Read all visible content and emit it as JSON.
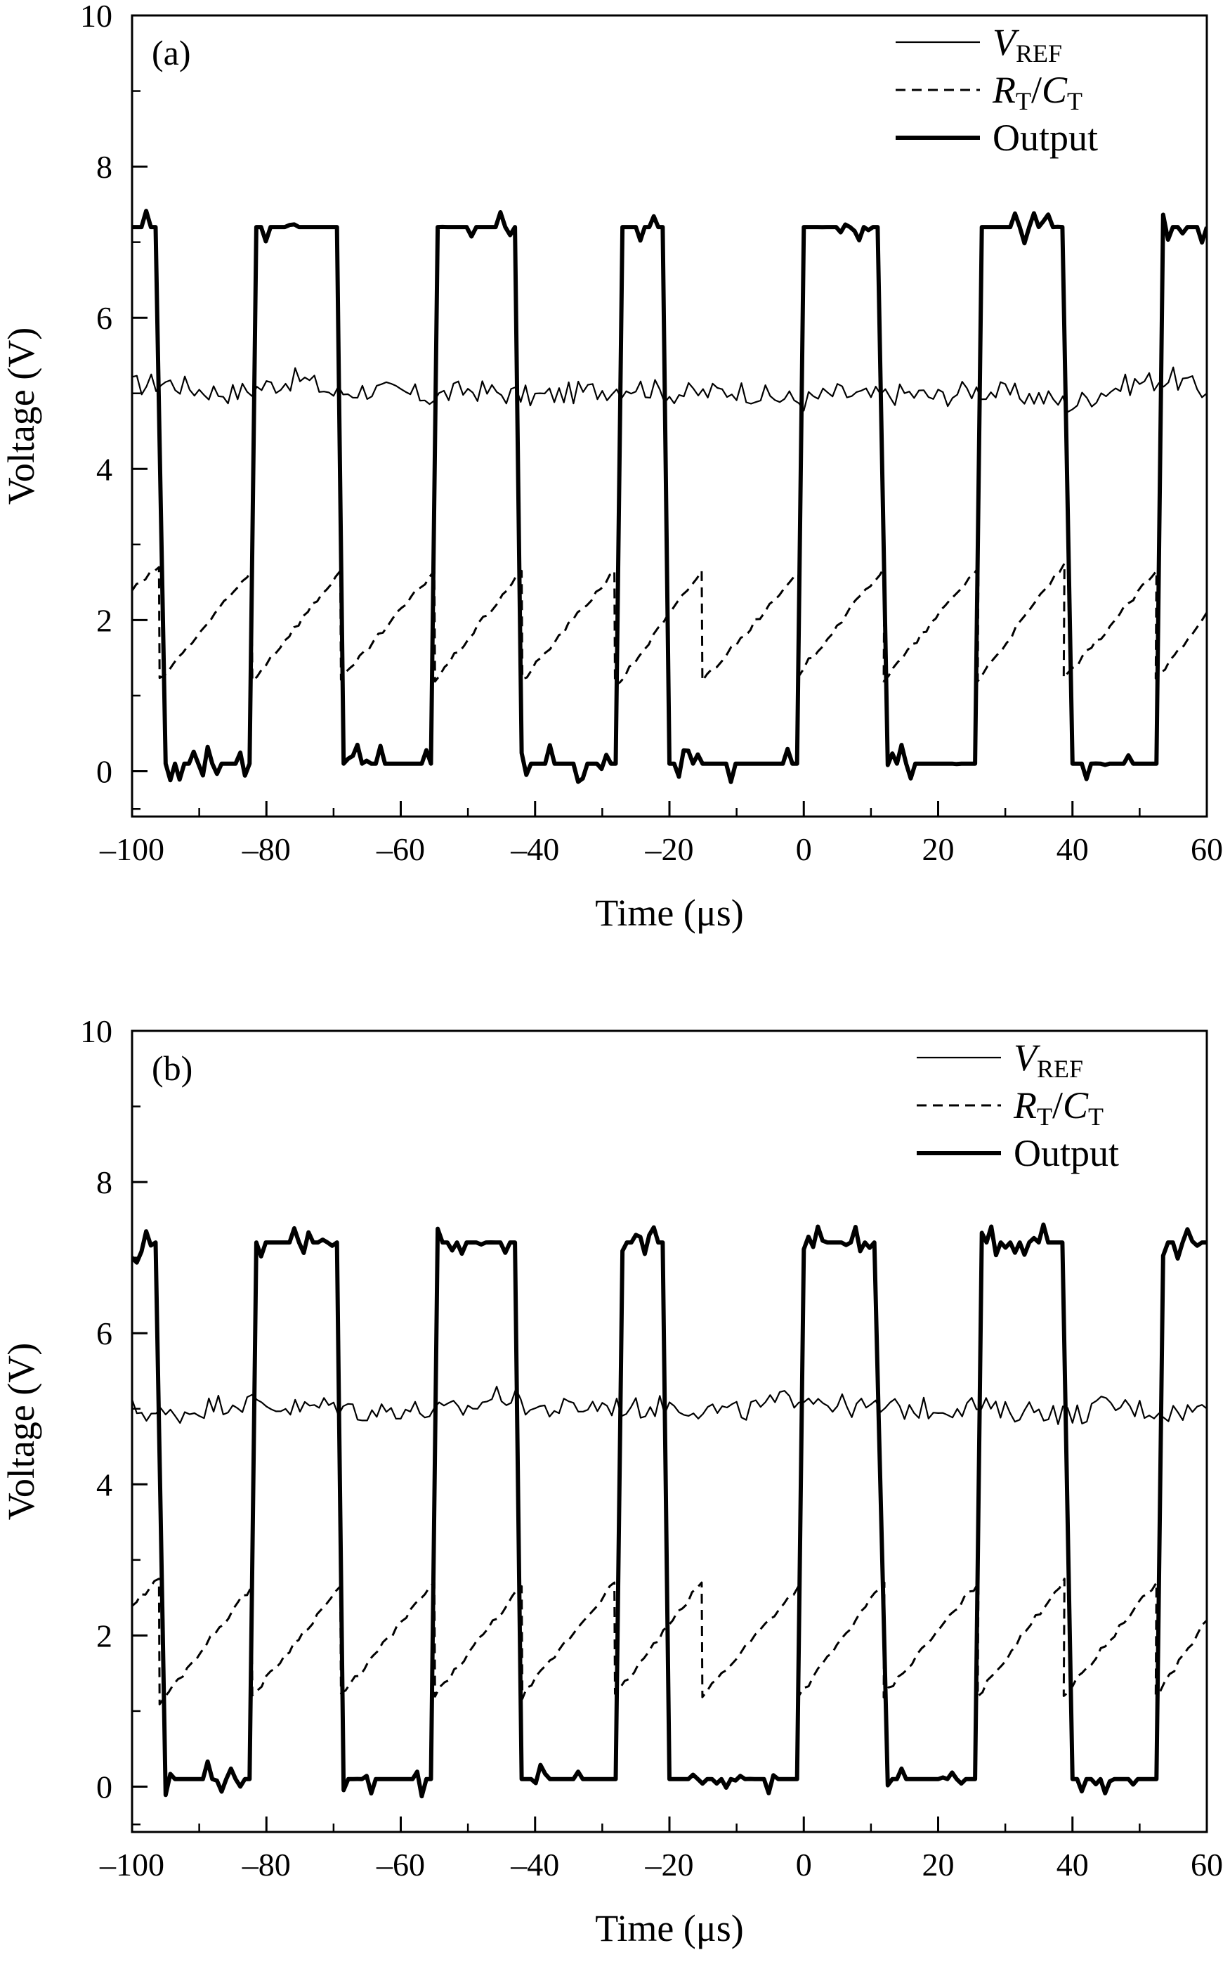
{
  "chart_data": [
    {
      "type": "line",
      "panel_label": "(a)",
      "xlabel": "Time (μs)",
      "ylabel": "Voltage (V)",
      "xlim": [
        -100,
        60
      ],
      "ylim": [
        -0.6,
        10
      ],
      "xticks": [
        -100,
        -80,
        -60,
        -40,
        -20,
        0,
        20,
        40,
        60
      ],
      "xtick_labels": [
        "–100",
        "–80",
        "–60",
        "–40",
        "–20",
        "0",
        "20",
        "40",
        "60"
      ],
      "yticks": [
        0,
        2,
        4,
        6,
        8,
        10
      ],
      "ytick_labels": [
        "0",
        "2",
        "4",
        "6",
        "8",
        "10"
      ],
      "grid": false,
      "legend_position": "top-right",
      "legend": [
        {
          "main": "V",
          "sub": "REF",
          "italic": true,
          "style": "thin-solid",
          "color": "#000000"
        },
        {
          "main": "R",
          "sub": "T",
          "sep": "/",
          "main2": "C",
          "sub2": "T",
          "italic": true,
          "style": "dashed",
          "color": "#000000"
        },
        {
          "main": "Output",
          "sub": "",
          "italic": false,
          "style": "thick-solid",
          "color": "#000000"
        }
      ],
      "series": [
        {
          "name": "V_REF",
          "style": "thin-solid",
          "description": "noisy level near 5 V",
          "x": [
            -100,
            -95,
            -90,
            -85,
            -80,
            -75,
            -70,
            -65,
            -60,
            -55,
            -50,
            -45,
            -40,
            -35,
            -30,
            -25,
            -20,
            -15,
            -10,
            -5,
            0,
            5,
            10,
            15,
            20,
            25,
            30,
            35,
            40,
            45,
            50,
            55,
            60
          ],
          "y": [
            5.1,
            5.15,
            5.05,
            5.0,
            5.1,
            5.2,
            5.0,
            5.05,
            5.0,
            4.95,
            5.05,
            5.0,
            4.95,
            5.0,
            5.05,
            5.1,
            5.0,
            5.0,
            5.05,
            4.95,
            4.9,
            5.0,
            4.95,
            5.0,
            4.95,
            5.05,
            5.0,
            4.95,
            4.85,
            5.05,
            5.15,
            5.2,
            5.0
          ]
        },
        {
          "name": "R_T/C_T",
          "style": "dashed",
          "description": "sawtooth between ~1.2 V and ~2.7 V",
          "x": [
            -100,
            -96,
            -95.9,
            -82.2,
            -82.1,
            -69,
            -68.9,
            -55,
            -54.9,
            -42,
            -41.9,
            -28.2,
            -28.1,
            -15.2,
            -15.1,
            -0.8,
            -0.7,
            12,
            11.9,
            26,
            25.9,
            38.8,
            38.7,
            52.5,
            52.4,
            60
          ],
          "y": [
            2.4,
            2.7,
            1.2,
            2.65,
            1.2,
            2.65,
            1.2,
            2.65,
            1.2,
            2.65,
            1.2,
            2.65,
            1.1,
            2.65,
            1.2,
            2.6,
            1.3,
            2.7,
            1.2,
            2.7,
            1.2,
            2.75,
            1.2,
            2.65,
            1.2,
            2.1
          ]
        },
        {
          "name": "Output",
          "style": "thick-solid",
          "description": "square wave between ~0.2 V and ~7.2 V",
          "x": [
            -100,
            -96.5,
            -95,
            -82.5,
            -81.5,
            -69.5,
            -68.5,
            -55.5,
            -54.5,
            -43,
            -42,
            -28,
            -27,
            -21,
            -20,
            -1,
            0,
            11,
            12.5,
            25.5,
            26.5,
            38.5,
            40,
            52.5,
            53.5,
            60
          ],
          "y": [
            7.2,
            7.2,
            0.1,
            0.1,
            7.2,
            7.2,
            0.1,
            0.1,
            7.2,
            7.2,
            0.1,
            0.1,
            7.2,
            7.2,
            0.1,
            0.1,
            7.2,
            7.2,
            0.1,
            0.1,
            7.2,
            7.2,
            0.1,
            0.1,
            7.2,
            7.2
          ]
        }
      ]
    },
    {
      "type": "line",
      "panel_label": "(b)",
      "xlabel": "Time (μs)",
      "ylabel": "Voltage (V)",
      "xlim": [
        -100,
        60
      ],
      "ylim": [
        -0.6,
        10
      ],
      "xticks": [
        -100,
        -80,
        -60,
        -40,
        -20,
        0,
        20,
        40,
        60
      ],
      "xtick_labels": [
        "–100",
        "–80",
        "–60",
        "–40",
        "–20",
        "0",
        "20",
        "40",
        "60"
      ],
      "yticks": [
        0,
        2,
        4,
        6,
        8,
        10
      ],
      "ytick_labels": [
        "0",
        "2",
        "4",
        "6",
        "8",
        "10"
      ],
      "grid": false,
      "legend_position": "top-right",
      "legend": [
        {
          "main": "V",
          "sub": "REF",
          "italic": true,
          "style": "thin-solid",
          "color": "#000000"
        },
        {
          "main": "R",
          "sub": "T",
          "sep": "/",
          "main2": "C",
          "sub2": "T",
          "italic": true,
          "style": "dashed",
          "color": "#000000"
        },
        {
          "main": "Output",
          "sub": "",
          "italic": false,
          "style": "thick-solid",
          "color": "#000000"
        }
      ],
      "series": [
        {
          "name": "V_REF",
          "style": "thin-solid",
          "description": "noisy level near 5 V",
          "x": [
            -100,
            -95,
            -90,
            -85,
            -80,
            -75,
            -70,
            -65,
            -60,
            -55,
            -50,
            -45,
            -40,
            -35,
            -30,
            -25,
            -20,
            -15,
            -10,
            -5,
            0,
            5,
            10,
            15,
            20,
            25,
            30,
            35,
            40,
            45,
            50,
            55,
            60
          ],
          "y": [
            5.0,
            4.9,
            5.0,
            5.1,
            5.05,
            5.0,
            5.05,
            4.95,
            5.0,
            4.95,
            5.0,
            5.2,
            5.0,
            5.0,
            5.05,
            5.0,
            5.05,
            5.0,
            4.95,
            5.05,
            5.2,
            5.05,
            5.0,
            5.0,
            5.0,
            5.05,
            4.95,
            5.0,
            4.9,
            5.05,
            5.0,
            4.95,
            5.0
          ]
        },
        {
          "name": "R_T/C_T",
          "style": "dashed",
          "description": "sawtooth between ~1.1 V and ~2.75 V",
          "x": [
            -100,
            -96,
            -95.9,
            -82.2,
            -82.1,
            -69,
            -68.9,
            -55,
            -54.9,
            -42,
            -41.9,
            -28.2,
            -28.1,
            -15.2,
            -15.1,
            -0.8,
            -0.7,
            12,
            11.9,
            26,
            25.9,
            38.8,
            38.7,
            52.5,
            52.4,
            60
          ],
          "y": [
            2.4,
            2.75,
            1.1,
            2.65,
            1.2,
            2.65,
            1.2,
            2.7,
            1.2,
            2.65,
            1.2,
            2.7,
            1.2,
            2.7,
            1.2,
            2.65,
            1.2,
            2.7,
            1.2,
            2.7,
            1.2,
            2.75,
            1.2,
            2.7,
            1.2,
            2.2
          ]
        },
        {
          "name": "Output",
          "style": "thick-solid",
          "description": "square wave between ~0.2 V and ~7.2 V",
          "x": [
            -100,
            -96.5,
            -95,
            -82.5,
            -81.5,
            -69.5,
            -68.5,
            -55.5,
            -54.5,
            -43,
            -42,
            -28,
            -27,
            -21,
            -20,
            -1,
            0,
            10.5,
            12.5,
            25.5,
            26.5,
            38.5,
            40,
            52.5,
            53.5,
            60
          ],
          "y": [
            7.0,
            7.2,
            0.1,
            0.1,
            7.2,
            7.2,
            0.1,
            0.1,
            7.2,
            7.2,
            0.1,
            0.1,
            7.2,
            7.2,
            0.1,
            0.1,
            7.2,
            7.2,
            0.1,
            0.1,
            7.2,
            7.2,
            0.1,
            0.1,
            7.2,
            7.2
          ]
        }
      ]
    }
  ]
}
